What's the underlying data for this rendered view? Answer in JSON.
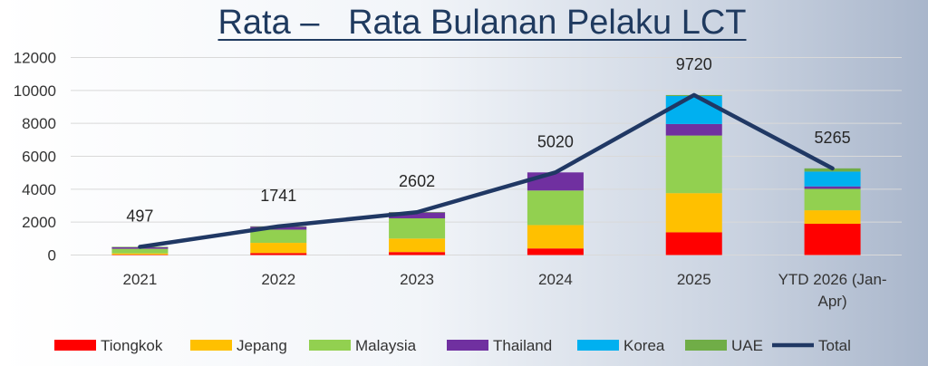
{
  "chart_data": {
    "type": "bar",
    "title": "Rata –   Rata Bulanan Pelaku LCT",
    "categories": [
      "2021",
      "2022",
      "2023",
      "2024",
      "2025",
      "YTD 2026 (Jan-Apr)"
    ],
    "ylim": [
      0,
      12000
    ],
    "yticks": [
      "0",
      "2000",
      "4000",
      "6000",
      "8000",
      "10000",
      "12000"
    ],
    "grid": true,
    "legend_position": "bottom",
    "series": [
      {
        "name": "Tiongkok",
        "color": "#ff0000",
        "values": [
          20,
          120,
          180,
          400,
          1380,
          1900
        ]
      },
      {
        "name": "Jepang",
        "color": "#ffc000",
        "values": [
          80,
          620,
          820,
          1420,
          2380,
          820
        ]
      },
      {
        "name": "Malaysia",
        "color": "#92d050",
        "values": [
          280,
          800,
          1230,
          2100,
          3500,
          1300
        ]
      },
      {
        "name": "Thailand",
        "color": "#7030a0",
        "values": [
          90,
          200,
          370,
          1100,
          700,
          150
        ]
      },
      {
        "name": "Korea",
        "color": "#00b0f0",
        "values": [
          0,
          0,
          0,
          0,
          1700,
          900
        ]
      },
      {
        "name": "UAE",
        "color": "#70ad47",
        "values": [
          27,
          1,
          2,
          0,
          60,
          195
        ]
      }
    ],
    "line_series": {
      "name": "Total",
      "color": "#203864",
      "values": [
        497,
        1741,
        2602,
        5020,
        9720,
        5265
      ]
    },
    "data_labels": [
      "497",
      "1741",
      "2602",
      "5020",
      "9720",
      "5265"
    ]
  }
}
